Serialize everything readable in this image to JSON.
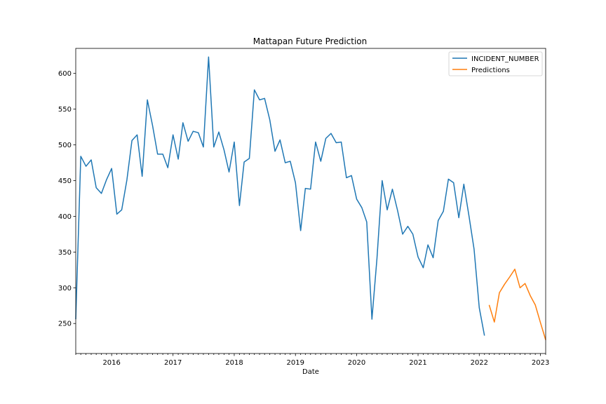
{
  "chart_data": {
    "type": "line",
    "title": "Mattapan Future Prediction",
    "xlabel": "Date",
    "ylabel": "",
    "xlim": [
      "2015-06-01",
      "2023-02-01"
    ],
    "ylim": [
      208,
      635
    ],
    "x_ticks": [
      "2016",
      "2017",
      "2018",
      "2019",
      "2020",
      "2021",
      "2022",
      "2023"
    ],
    "y_ticks": [
      250,
      300,
      350,
      400,
      450,
      500,
      550,
      600
    ],
    "grid": false,
    "legend_position": "top-right",
    "series": [
      {
        "name": "INCIDENT_NUMBER",
        "color": "#1f77b4",
        "points": [
          [
            "2015-06-01",
            256
          ],
          [
            "2015-07-01",
            484
          ],
          [
            "2015-08-01",
            470
          ],
          [
            "2015-09-01",
            479
          ],
          [
            "2015-10-01",
            440
          ],
          [
            "2015-11-01",
            432
          ],
          [
            "2015-12-01",
            451
          ],
          [
            "2016-01-01",
            467
          ],
          [
            "2016-02-01",
            403
          ],
          [
            "2016-03-01",
            409
          ],
          [
            "2016-04-01",
            451
          ],
          [
            "2016-05-01",
            506
          ],
          [
            "2016-06-01",
            514
          ],
          [
            "2016-07-01",
            456
          ],
          [
            "2016-08-01",
            563
          ],
          [
            "2016-09-01",
            527
          ],
          [
            "2016-10-01",
            487
          ],
          [
            "2016-11-01",
            487
          ],
          [
            "2016-12-01",
            468
          ],
          [
            "2017-01-01",
            514
          ],
          [
            "2017-02-01",
            480
          ],
          [
            "2017-03-01",
            531
          ],
          [
            "2017-04-01",
            505
          ],
          [
            "2017-05-01",
            519
          ],
          [
            "2017-06-01",
            517
          ],
          [
            "2017-07-01",
            497
          ],
          [
            "2017-08-01",
            623
          ],
          [
            "2017-09-01",
            497
          ],
          [
            "2017-10-01",
            518
          ],
          [
            "2017-11-01",
            493
          ],
          [
            "2017-12-01",
            462
          ],
          [
            "2018-01-01",
            504
          ],
          [
            "2018-02-01",
            415
          ],
          [
            "2018-03-01",
            476
          ],
          [
            "2018-04-01",
            481
          ],
          [
            "2018-05-01",
            577
          ],
          [
            "2018-06-01",
            563
          ],
          [
            "2018-07-01",
            565
          ],
          [
            "2018-08-01",
            535
          ],
          [
            "2018-09-01",
            491
          ],
          [
            "2018-10-01",
            507
          ],
          [
            "2018-11-01",
            475
          ],
          [
            "2018-12-01",
            477
          ],
          [
            "2019-01-01",
            447
          ],
          [
            "2019-02-01",
            380
          ],
          [
            "2019-03-01",
            439
          ],
          [
            "2019-04-01",
            438
          ],
          [
            "2019-05-01",
            504
          ],
          [
            "2019-06-01",
            477
          ],
          [
            "2019-07-01",
            509
          ],
          [
            "2019-08-01",
            516
          ],
          [
            "2019-09-01",
            503
          ],
          [
            "2019-10-01",
            504
          ],
          [
            "2019-11-01",
            454
          ],
          [
            "2019-12-01",
            457
          ],
          [
            "2020-01-01",
            424
          ],
          [
            "2020-02-01",
            412
          ],
          [
            "2020-03-01",
            392
          ],
          [
            "2020-04-01",
            256
          ],
          [
            "2020-05-01",
            341
          ],
          [
            "2020-06-01",
            450
          ],
          [
            "2020-07-01",
            409
          ],
          [
            "2020-08-01",
            438
          ],
          [
            "2020-09-01",
            408
          ],
          [
            "2020-10-01",
            375
          ],
          [
            "2020-11-01",
            386
          ],
          [
            "2020-12-01",
            375
          ],
          [
            "2021-01-01",
            343
          ],
          [
            "2021-02-01",
            328
          ],
          [
            "2021-03-01",
            360
          ],
          [
            "2021-04-01",
            342
          ],
          [
            "2021-05-01",
            394
          ],
          [
            "2021-06-01",
            407
          ],
          [
            "2021-07-01",
            452
          ],
          [
            "2021-08-01",
            447
          ],
          [
            "2021-09-01",
            398
          ],
          [
            "2021-10-01",
            445
          ],
          [
            "2021-11-01",
            400
          ],
          [
            "2021-12-01",
            354
          ],
          [
            "2022-01-01",
            272
          ],
          [
            "2022-02-01",
            233
          ]
        ]
      },
      {
        "name": "Predictions",
        "color": "#ff7f0e",
        "points": [
          [
            "2022-03-01",
            276
          ],
          [
            "2022-04-01",
            252
          ],
          [
            "2022-05-01",
            293
          ],
          [
            "2022-06-01",
            305
          ],
          [
            "2022-07-01",
            315
          ],
          [
            "2022-08-01",
            326
          ],
          [
            "2022-09-01",
            300
          ],
          [
            "2022-10-01",
            306
          ],
          [
            "2022-11-01",
            289
          ],
          [
            "2022-12-01",
            276
          ],
          [
            "2023-01-01",
            251
          ],
          [
            "2023-02-01",
            227
          ]
        ]
      }
    ]
  }
}
